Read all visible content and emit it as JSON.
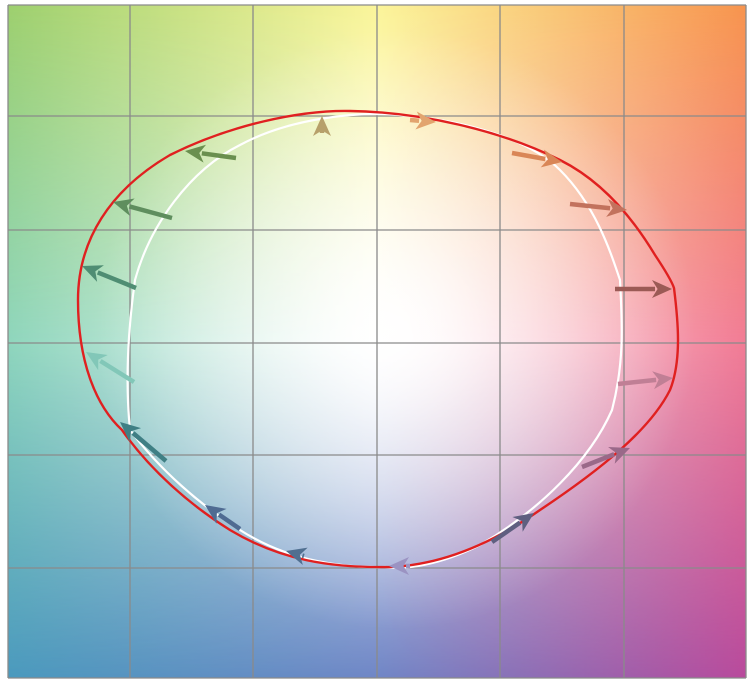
{
  "corner_colors": {
    "top_left": "#9dcf6e",
    "top_center": "#fbf59a",
    "top_right": "#f7944e",
    "middle_left": "#8fd6bd",
    "center": "#ffffff",
    "middle_right": "#f27c95",
    "bottom_left": "#4a99bd",
    "bottom_center": "#6f86c6",
    "bottom_right": "#b84a9c"
  },
  "grid_color": "#8a8a8a",
  "outer_contour_color": "#e02020",
  "inner_contour_color": "#ffffff",
  "arrow_colors": [
    "#b7a06a",
    "#e2a46e",
    "#d98656",
    "#c2725d",
    "#9b5a55",
    "#c07f95",
    "#9a6989",
    "#5f5f80",
    "#9b93c2",
    "#4f6b92",
    "#506f90",
    "#3f7f84",
    "#82c7b8",
    "#4f8d73",
    "#5f8e5e",
    "#6a8f4f"
  ]
}
